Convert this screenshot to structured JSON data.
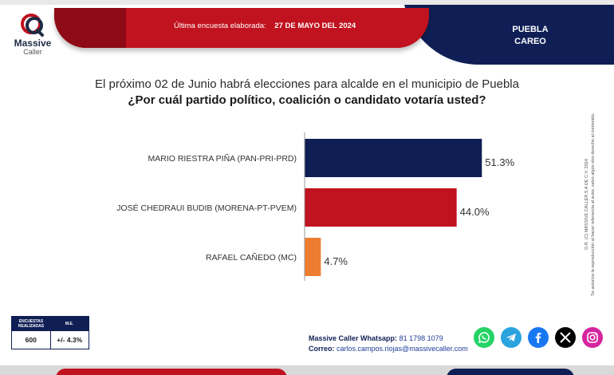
{
  "brand": {
    "name_line1": "Massive",
    "name_line2": "Caller"
  },
  "header": {
    "survey_label": "Última encuesta elaborada:",
    "survey_date": "27 DE MAYO DEL 2024",
    "region_line1": "PUEBLA",
    "region_line2": "CAREO"
  },
  "question": {
    "line1": "El próximo 02 de Junio habrá elecciones para alcalde en el municipio de Puebla",
    "line2": "¿Por cuál partido político, coalición o candidato votaría usted?"
  },
  "chart_data": {
    "type": "bar",
    "orientation": "horizontal",
    "categories": [
      "MARIO RIESTRA PIÑA (PAN-PRI-PRD)",
      "JOSÉ CHEDRAUI BUDIB (MORENA-PT-PVEM)",
      "RAFAEL CAÑEDO (MC)"
    ],
    "values": [
      51.3,
      44.0,
      4.7
    ],
    "value_labels": [
      "51.3%",
      "44.0%",
      "4.7%"
    ],
    "colors": [
      "#0f1f55",
      "#c1121f",
      "#ee7d31"
    ],
    "xlim": [
      0,
      60
    ],
    "grid": false,
    "legend": "none"
  },
  "sample": {
    "col1_header": "ENCUESTAS REALIZADAS",
    "col2_header": "M.E.",
    "col1_value": "600",
    "col2_value": "+/- 4.3%"
  },
  "contact": {
    "whatsapp_label": "Massive Caller Whatsapp:",
    "whatsapp_value": "81 1798  1079",
    "email_label": "Correo:",
    "email_value": "carlos.campos.riojas@massivecaller.com"
  },
  "side_note": {
    "line1": "D.R. (C) MASSIVE CALLER S.A DE C.V. 2024",
    "line2": "Se autoriza la reproducción al hacer referencia al autor, salvo algún otro derecho al contenido."
  },
  "socials": [
    "whatsapp-icon",
    "telegram-icon",
    "facebook-icon",
    "x-icon",
    "instagram-icon"
  ],
  "colors": {
    "brand_red": "#c1121f",
    "brand_blue": "#0f1f55",
    "accent_orange": "#ee7d31"
  }
}
